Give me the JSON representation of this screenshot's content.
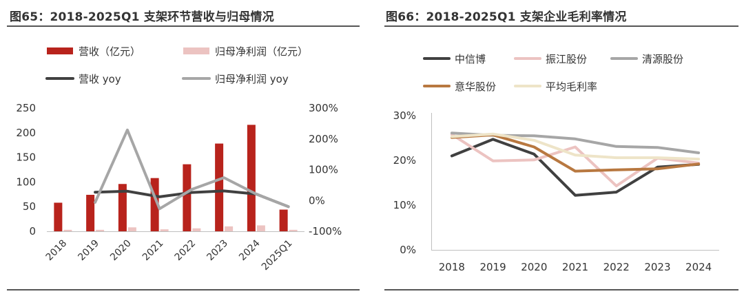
{
  "figures": [
    {
      "title": "图65：2018-2025Q1 支架环节营收与归母情况",
      "chart_data": {
        "type": "bar",
        "categories": [
          "2018",
          "2019",
          "2020",
          "2021",
          "2022",
          "2023",
          "2024",
          "2025Q1"
        ],
        "bar_series": [
          {
            "name": "营收（亿元）",
            "color": "#B8231C",
            "values": [
              58,
              74,
              96,
              108,
              136,
              178,
              216,
              44
            ]
          },
          {
            "name": "归母净利润（亿元）",
            "color": "#ECC3C1",
            "values": [
              3,
              3,
              8,
              4,
              6,
              10,
              12,
              3
            ]
          }
        ],
        "line_series": [
          {
            "name": "营收 yoy",
            "color": "#404040",
            "values": [
              null,
              27,
              30,
              12,
              26,
              31,
              21,
              -20
            ]
          },
          {
            "name": "归母净利润 yoy",
            "color": "#A6A6A6",
            "values": [
              null,
              -6,
              229,
              -27,
              36,
              74,
              21,
              -20
            ]
          }
        ],
        "left_axis": {
          "range": [
            0,
            250
          ],
          "ticks": [
            0,
            50,
            100,
            150,
            200,
            250
          ],
          "labels": [
            "0",
            "50",
            "100",
            "150",
            "200",
            "250"
          ]
        },
        "right_axis": {
          "range": [
            -100,
            300
          ],
          "ticks": [
            -100,
            0,
            100,
            200,
            300
          ],
          "labels": [
            "-100%",
            "0%",
            "100%",
            "200%",
            "300%"
          ]
        },
        "grid": false,
        "legend": "top"
      }
    },
    {
      "title": "图66：2018-2025Q1 支架企业毛利率情况",
      "chart_data": {
        "type": "line",
        "categories": [
          "2018",
          "2019",
          "2020",
          "2021",
          "2022",
          "2023",
          "2024"
        ],
        "series": [
          {
            "name": "中信博",
            "color": "#404040",
            "values": [
              21.0,
              24.7,
              21.4,
              12.2,
              12.9,
              18.5,
              19.1
            ]
          },
          {
            "name": "振江股份",
            "color": "#ECC3C1",
            "values": [
              25.8,
              19.9,
              20.1,
              23.0,
              14.3,
              20.5,
              19.4
            ]
          },
          {
            "name": "清源股份",
            "color": "#A6A6A6",
            "values": [
              26.1,
              25.6,
              25.5,
              24.8,
              23.1,
              22.9,
              21.7
            ]
          },
          {
            "name": "意华股份",
            "color": "#B87840",
            "values": [
              25.1,
              25.7,
              23.0,
              17.6,
              17.9,
              18.1,
              19.2
            ]
          },
          {
            "name": "平均毛利率",
            "color": "#EEE4C8",
            "values": [
              25.3,
              25.9,
              24.5,
              21.2,
              20.6,
              20.6,
              20.3
            ]
          }
        ],
        "y_axis": {
          "range": [
            0,
            30
          ],
          "ticks": [
            0,
            10,
            20,
            30
          ],
          "labels": [
            "0%",
            "10%",
            "20%",
            "30%"
          ]
        },
        "grid": false,
        "legend": "top"
      }
    }
  ]
}
